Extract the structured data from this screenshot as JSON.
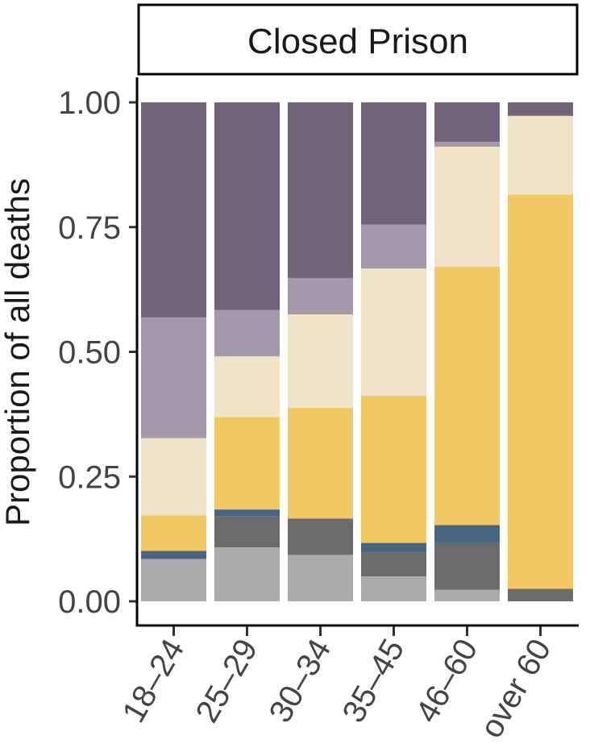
{
  "chart_data": {
    "type": "bar",
    "stacked": true,
    "panel_title": "Closed Prison",
    "ylabel": "Proportion of all deaths",
    "xlabel": "",
    "ylim": [
      0,
      1
    ],
    "yticks": [
      0,
      0.25,
      0.5,
      0.75,
      1
    ],
    "ytick_labels": [
      "0.00",
      "0.25",
      "0.50",
      "0.75",
      "1.00"
    ],
    "categories": [
      "18–24",
      "25–29",
      "30–34",
      "35–45",
      "46–60",
      "over 60"
    ],
    "grid": false,
    "legend": "none",
    "series": [
      {
        "color": "#ababab",
        "values": [
          0.085,
          0.108,
          0.093,
          0.05,
          0.023,
          0.0
        ]
      },
      {
        "color": "#6b6b6b",
        "values": [
          0.0,
          0.062,
          0.073,
          0.048,
          0.095,
          0.025
        ]
      },
      {
        "color": "#4a6580",
        "values": [
          0.016,
          0.014,
          0.0,
          0.019,
          0.035,
          0.0
        ]
      },
      {
        "color": "#f2c865",
        "values": [
          0.071,
          0.185,
          0.222,
          0.295,
          0.518,
          0.79
        ]
      },
      {
        "color": "#f1e3c8",
        "values": [
          0.155,
          0.122,
          0.187,
          0.255,
          0.24,
          0.158
        ]
      },
      {
        "color": "#a698ab",
        "values": [
          0.242,
          0.093,
          0.073,
          0.088,
          0.01,
          0.0
        ]
      },
      {
        "color": "#72627a",
        "values": [
          0.431,
          0.416,
          0.352,
          0.245,
          0.079,
          0.027
        ]
      }
    ]
  }
}
